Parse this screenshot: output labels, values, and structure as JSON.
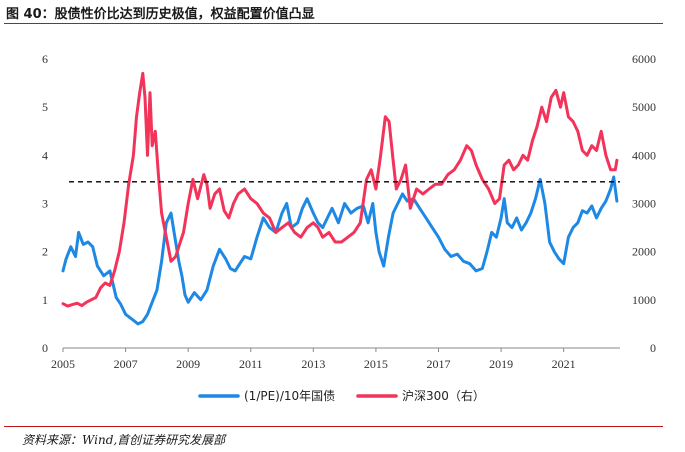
{
  "header": {
    "title": "图 40：股债性价比达到历史极值，权益配置价值凸显"
  },
  "footer": {
    "source": "资料来源：Wind,首创证券研究发展部"
  },
  "colors": {
    "series1": "#1e88e5",
    "series2": "#f2335a",
    "reference": "#000000",
    "accent": "#c0151a"
  },
  "chart_data": {
    "type": "line",
    "title": "图 40：股债性价比达到历史极值，权益配置价值凸显",
    "xlim": [
      2005,
      2022.8
    ],
    "x_ticks": [
      "2005",
      "2007",
      "2009",
      "2011",
      "2013",
      "2015",
      "2017",
      "2019",
      "2021"
    ],
    "y_left": {
      "lim": [
        0,
        6
      ],
      "ticks": [
        "0",
        "1",
        "2",
        "3",
        "4",
        "5",
        "6"
      ]
    },
    "y_right": {
      "lim": [
        0,
        6000
      ],
      "ticks": [
        "0",
        "1000",
        "2000",
        "3000",
        "4000",
        "5000",
        "6000"
      ]
    },
    "reference_line": {
      "axis": "left",
      "value": 3.45,
      "style": "dashed"
    },
    "legend": {
      "placement": "bottom-center"
    },
    "series": [
      {
        "name": "(1/PE)/10年国债",
        "axis": "left",
        "x": [
          2005.0,
          2005.1,
          2005.25,
          2005.4,
          2005.5,
          2005.65,
          2005.8,
          2005.95,
          2006.1,
          2006.3,
          2006.5,
          2006.7,
          2006.85,
          2007.0,
          2007.2,
          2007.4,
          2007.55,
          2007.7,
          2007.85,
          2008.0,
          2008.15,
          2008.3,
          2008.45,
          2008.55,
          2008.7,
          2008.8,
          2008.9,
          2009.0,
          2009.2,
          2009.4,
          2009.6,
          2009.8,
          2010.0,
          2010.2,
          2010.35,
          2010.5,
          2010.65,
          2010.8,
          2011.0,
          2011.2,
          2011.4,
          2011.6,
          2011.8,
          2012.0,
          2012.15,
          2012.3,
          2012.5,
          2012.65,
          2012.8,
          2013.0,
          2013.15,
          2013.3,
          2013.45,
          2013.6,
          2013.8,
          2014.0,
          2014.2,
          2014.4,
          2014.6,
          2014.75,
          2014.9,
          2015.0,
          2015.1,
          2015.25,
          2015.4,
          2015.55,
          2015.7,
          2015.85,
          2016.0,
          2016.2,
          2016.4,
          2016.6,
          2016.8,
          2017.0,
          2017.2,
          2017.4,
          2017.6,
          2017.8,
          2018.0,
          2018.2,
          2018.4,
          2018.55,
          2018.7,
          2018.85,
          2019.0,
          2019.1,
          2019.2,
          2019.35,
          2019.5,
          2019.65,
          2019.8,
          2019.95,
          2020.1,
          2020.25,
          2020.4,
          2020.55,
          2020.7,
          2020.85,
          2021.0,
          2021.15,
          2021.3,
          2021.45,
          2021.6,
          2021.75,
          2021.9,
          2022.05,
          2022.2,
          2022.35,
          2022.5,
          2022.6,
          2022.7
        ],
        "values": [
          1.6,
          1.85,
          2.1,
          1.9,
          2.4,
          2.15,
          2.2,
          2.1,
          1.7,
          1.5,
          1.6,
          1.05,
          0.9,
          0.7,
          0.6,
          0.5,
          0.55,
          0.7,
          0.95,
          1.2,
          1.8,
          2.6,
          2.8,
          2.4,
          1.8,
          1.5,
          1.1,
          0.95,
          1.15,
          1.0,
          1.2,
          1.7,
          2.05,
          1.85,
          1.65,
          1.6,
          1.75,
          1.9,
          1.85,
          2.3,
          2.7,
          2.5,
          2.4,
          2.8,
          3.0,
          2.5,
          2.6,
          2.9,
          3.1,
          2.8,
          2.6,
          2.5,
          2.7,
          2.9,
          2.6,
          3.0,
          2.8,
          2.9,
          2.95,
          2.6,
          3.0,
          2.4,
          2.0,
          1.7,
          2.3,
          2.8,
          3.0,
          3.2,
          3.05,
          3.1,
          2.9,
          2.7,
          2.5,
          2.3,
          2.05,
          1.9,
          1.95,
          1.8,
          1.75,
          1.6,
          1.65,
          2.0,
          2.4,
          2.3,
          2.7,
          3.1,
          2.6,
          2.5,
          2.7,
          2.45,
          2.6,
          2.8,
          3.1,
          3.5,
          3.0,
          2.2,
          2.0,
          1.85,
          1.75,
          2.3,
          2.5,
          2.6,
          2.85,
          2.8,
          2.95,
          2.7,
          2.9,
          3.05,
          3.3,
          3.55,
          3.05
        ]
      },
      {
        "name": "沪深300（右）",
        "axis": "right",
        "x": [
          2005.0,
          2005.15,
          2005.3,
          2005.45,
          2005.6,
          2005.75,
          2005.9,
          2006.05,
          2006.2,
          2006.35,
          2006.5,
          2006.65,
          2006.8,
          2006.95,
          2007.1,
          2007.25,
          2007.35,
          2007.45,
          2007.55,
          2007.62,
          2007.7,
          2007.78,
          2007.85,
          2007.95,
          2008.05,
          2008.15,
          2008.3,
          2008.45,
          2008.6,
          2008.75,
          2008.85,
          2009.0,
          2009.15,
          2009.3,
          2009.5,
          2009.6,
          2009.7,
          2009.85,
          2010.0,
          2010.15,
          2010.3,
          2010.45,
          2010.6,
          2010.8,
          2011.0,
          2011.2,
          2011.4,
          2011.6,
          2011.8,
          2012.0,
          2012.2,
          2012.4,
          2012.6,
          2012.8,
          2013.0,
          2013.15,
          2013.3,
          2013.5,
          2013.7,
          2013.9,
          2014.1,
          2014.3,
          2014.5,
          2014.7,
          2014.85,
          2015.0,
          2015.15,
          2015.3,
          2015.42,
          2015.55,
          2015.65,
          2015.8,
          2015.95,
          2016.1,
          2016.3,
          2016.5,
          2016.7,
          2016.9,
          2017.1,
          2017.3,
          2017.5,
          2017.7,
          2017.9,
          2018.05,
          2018.2,
          2018.4,
          2018.6,
          2018.8,
          2018.95,
          2019.1,
          2019.25,
          2019.4,
          2019.55,
          2019.7,
          2019.85,
          2020.0,
          2020.15,
          2020.3,
          2020.45,
          2020.6,
          2020.75,
          2020.9,
          2021.0,
          2021.15,
          2021.3,
          2021.45,
          2021.6,
          2021.75,
          2021.9,
          2022.05,
          2022.2,
          2022.35,
          2022.5,
          2022.65,
          2022.7
        ],
        "values": [
          920,
          870,
          900,
          930,
          880,
          950,
          1000,
          1050,
          1250,
          1350,
          1300,
          1600,
          2000,
          2600,
          3400,
          4000,
          4800,
          5300,
          5700,
          5200,
          4000,
          5300,
          4200,
          4500,
          3600,
          2800,
          2300,
          1800,
          1900,
          2200,
          2400,
          3000,
          3500,
          3100,
          3600,
          3400,
          2900,
          3200,
          3300,
          2850,
          2700,
          3000,
          3200,
          3300,
          3100,
          3000,
          2800,
          2700,
          2400,
          2500,
          2600,
          2400,
          2300,
          2500,
          2600,
          2500,
          2300,
          2400,
          2200,
          2200,
          2300,
          2400,
          2600,
          3500,
          3700,
          3300,
          4000,
          4800,
          4700,
          3900,
          3300,
          3500,
          3800,
          2900,
          3300,
          3200,
          3300,
          3400,
          3400,
          3600,
          3700,
          3900,
          4200,
          4100,
          3800,
          3500,
          3300,
          3000,
          3100,
          3800,
          3900,
          3700,
          3800,
          4000,
          3900,
          4300,
          4600,
          5000,
          4700,
          5200,
          5350,
          5000,
          5300,
          4800,
          4700,
          4500,
          4100,
          4000,
          4200,
          4100,
          4500,
          4000,
          3700,
          3700,
          3900
        ]
      }
    ]
  }
}
